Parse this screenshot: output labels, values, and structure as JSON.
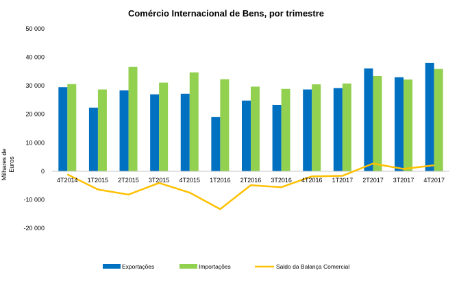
{
  "chart_data": {
    "type": "bar",
    "title": "Comércio Internacional  de Bens, por trimestre",
    "ylabel": "Milhares de Euros",
    "categories": [
      "4T2014",
      "1T2015",
      "2T2015",
      "3T2015",
      "4T2015",
      "1T2016",
      "2T2016",
      "3T2016",
      "4T2016",
      "1T2017",
      "2T2017",
      "3T2017",
      "4T2017"
    ],
    "ylim": [
      -20000,
      50000
    ],
    "yticks": [
      -20000,
      -10000,
      0,
      10000,
      20000,
      30000,
      40000,
      50000
    ],
    "ytick_labels": [
      "-20 000",
      "-10 000",
      "0",
      "10 000",
      "20 000",
      "30 000",
      "40 000",
      "50 000"
    ],
    "grid": false,
    "legend_position": "bottom",
    "series": [
      {
        "name": "Exportações",
        "type": "bar",
        "color": "#0070c0",
        "values": [
          29500,
          22300,
          28400,
          27000,
          27200,
          19000,
          24800,
          23300,
          28700,
          29200,
          36100,
          33000,
          38000
        ]
      },
      {
        "name": "Importações",
        "type": "bar",
        "color": "#92d050",
        "values": [
          30600,
          28700,
          36600,
          31100,
          34700,
          32300,
          29700,
          28900,
          30500,
          30800,
          33400,
          32200,
          35900
        ]
      },
      {
        "name": "Saldo da Balança  Comercial",
        "type": "line",
        "color": "#ffc000",
        "values": [
          -1100,
          -6400,
          -8200,
          -4100,
          -7500,
          -13300,
          -4900,
          -5600,
          -1800,
          -1600,
          2700,
          800,
          2100
        ]
      }
    ]
  }
}
